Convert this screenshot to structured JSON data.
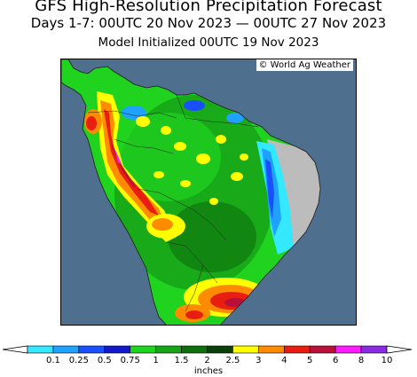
{
  "title": "GFS High-Resolution Precipitation Forecast",
  "subtitle": "Days 1-7: 00UTC 20 Nov 2023 — 00UTC 27 Nov 2023",
  "initialized": "Model Initialized 00UTC 19 Nov 2023",
  "credit": "© World Ag Weather",
  "legend": {
    "unit": "inches",
    "ticks": [
      "0.1",
      "0.25",
      "0.5",
      "0.75",
      "1",
      "1.5",
      "2",
      "2.5",
      "3",
      "4",
      "5",
      "6",
      "8",
      "10"
    ],
    "colors": [
      "#33e8ff",
      "#1fa2ff",
      "#1a4fff",
      "#1219c8",
      "#1fd31f",
      "#17a517",
      "#0e6e0e",
      "#0a3f0a",
      "#ffff00",
      "#ff8c00",
      "#e81f10",
      "#b8103a",
      "#ff1aff",
      "#8a2be2"
    ]
  },
  "map": {
    "ocean_color": "#4f6f8f",
    "land_color": "#bcbcbc",
    "region": "South America"
  }
}
